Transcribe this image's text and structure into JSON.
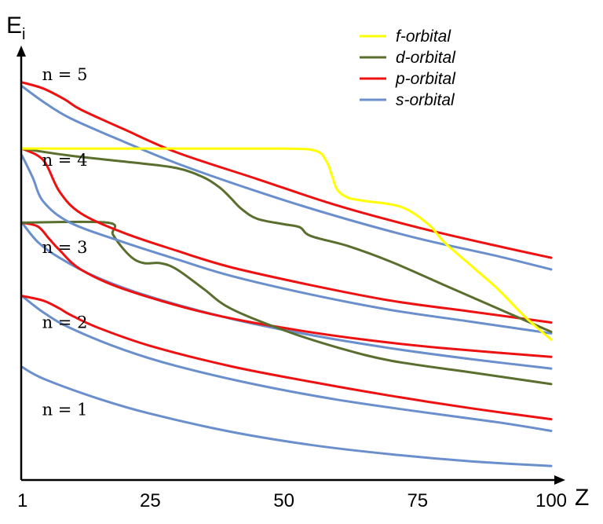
{
  "chart_data": {
    "type": "line",
    "xlabel": "Z",
    "ylabel": "E",
    "ylabel_sub": "i",
    "xlim": [
      1,
      100
    ],
    "ylim": [
      0,
      5.4
    ],
    "x_ticks": [
      {
        "value": 1,
        "label": "1"
      },
      {
        "value": 25,
        "label": "25"
      },
      {
        "value": 50,
        "label": "50"
      },
      {
        "value": 75,
        "label": "75"
      },
      {
        "value": 100,
        "label": "100"
      }
    ],
    "legend": {
      "placement": "top-right",
      "entries": [
        {
          "label": "f-orbital",
          "color": "#ffff00"
        },
        {
          "label": "d-orbital",
          "color": "#5a6e2e"
        },
        {
          "label": "p-orbital",
          "color": "#ee1111"
        },
        {
          "label": "s-orbital",
          "color": "#6a8fcc"
        }
      ]
    },
    "shell_labels": [
      {
        "text": "n = 5",
        "x": 3,
        "y": 5.2
      },
      {
        "text": "n = 4",
        "x": 3,
        "y": 4.1
      },
      {
        "text": "n = 3",
        "x": 3,
        "y": 2.98
      },
      {
        "text": "n = 2",
        "x": 3,
        "y": 2.02
      },
      {
        "text": "n = 1",
        "x": 3,
        "y": 0.9
      }
    ],
    "series": [
      {
        "orbital": "s",
        "color": "#6a8fcc",
        "points": [
          [
            1,
            1.45
          ],
          [
            5,
            1.3
          ],
          [
            15,
            1.05
          ],
          [
            25,
            0.85
          ],
          [
            40,
            0.62
          ],
          [
            55,
            0.45
          ],
          [
            70,
            0.33
          ],
          [
            85,
            0.24
          ],
          [
            100,
            0.18
          ]
        ]
      },
      {
        "orbital": "s",
        "color": "#6a8fcc",
        "points": [
          [
            1,
            2.36
          ],
          [
            5,
            2.15
          ],
          [
            10,
            1.95
          ],
          [
            20,
            1.67
          ],
          [
            30,
            1.46
          ],
          [
            45,
            1.22
          ],
          [
            60,
            1.03
          ],
          [
            75,
            0.88
          ],
          [
            90,
            0.74
          ],
          [
            100,
            0.63
          ]
        ]
      },
      {
        "orbital": "p",
        "color": "#ee1111",
        "points": [
          [
            1,
            2.36
          ],
          [
            5,
            2.3
          ],
          [
            8,
            2.2
          ],
          [
            10,
            2.12
          ],
          [
            15,
            1.96
          ],
          [
            25,
            1.72
          ],
          [
            40,
            1.46
          ],
          [
            55,
            1.26
          ],
          [
            70,
            1.08
          ],
          [
            85,
            0.92
          ],
          [
            100,
            0.78
          ]
        ]
      },
      {
        "orbital": "s",
        "color": "#6a8fcc",
        "points": [
          [
            1,
            3.3
          ],
          [
            4,
            3.05
          ],
          [
            8,
            2.85
          ],
          [
            15,
            2.6
          ],
          [
            25,
            2.35
          ],
          [
            40,
            2.07
          ],
          [
            55,
            1.86
          ],
          [
            70,
            1.69
          ],
          [
            85,
            1.55
          ],
          [
            100,
            1.43
          ]
        ]
      },
      {
        "orbital": "p",
        "color": "#ee1111",
        "points": [
          [
            1,
            3.3
          ],
          [
            4,
            3.25
          ],
          [
            6,
            3.1
          ],
          [
            8,
            2.95
          ],
          [
            12,
            2.7
          ],
          [
            20,
            2.45
          ],
          [
            35,
            2.15
          ],
          [
            50,
            1.95
          ],
          [
            65,
            1.8
          ],
          [
            80,
            1.69
          ],
          [
            100,
            1.58
          ]
        ]
      },
      {
        "orbital": "d",
        "color": "#5a6e2e",
        "points": [
          [
            1,
            3.3
          ],
          [
            17,
            3.3
          ],
          [
            18,
            3.15
          ],
          [
            20,
            2.96
          ],
          [
            22,
            2.83
          ],
          [
            24,
            2.78
          ],
          [
            27,
            2.78
          ],
          [
            30,
            2.7
          ],
          [
            35,
            2.45
          ],
          [
            40,
            2.2
          ],
          [
            50,
            1.92
          ],
          [
            60,
            1.7
          ],
          [
            70,
            1.53
          ],
          [
            85,
            1.38
          ],
          [
            100,
            1.23
          ]
        ]
      },
      {
        "orbital": "s",
        "color": "#6a8fcc",
        "points": [
          [
            1,
            4.16
          ],
          [
            3,
            3.88
          ],
          [
            5,
            3.57
          ],
          [
            10,
            3.3
          ],
          [
            20,
            3.05
          ],
          [
            30,
            2.83
          ],
          [
            40,
            2.62
          ],
          [
            55,
            2.38
          ],
          [
            70,
            2.18
          ],
          [
            85,
            2.03
          ],
          [
            100,
            1.88
          ]
        ]
      },
      {
        "orbital": "p",
        "color": "#ee1111",
        "points": [
          [
            1,
            4.25
          ],
          [
            5,
            4.1
          ],
          [
            8,
            3.7
          ],
          [
            12,
            3.42
          ],
          [
            20,
            3.17
          ],
          [
            30,
            2.94
          ],
          [
            40,
            2.73
          ],
          [
            55,
            2.5
          ],
          [
            70,
            2.3
          ],
          [
            85,
            2.16
          ],
          [
            100,
            2.02
          ]
        ]
      },
      {
        "orbital": "d",
        "color": "#5a6e2e",
        "points": [
          [
            1,
            4.25
          ],
          [
            10,
            4.16
          ],
          [
            22,
            4.07
          ],
          [
            30,
            4.0
          ],
          [
            35,
            3.88
          ],
          [
            38,
            3.75
          ],
          [
            40,
            3.62
          ],
          [
            42,
            3.48
          ],
          [
            45,
            3.35
          ],
          [
            50,
            3.28
          ],
          [
            53,
            3.24
          ],
          [
            55,
            3.13
          ],
          [
            62,
            3.0
          ],
          [
            70,
            2.8
          ],
          [
            80,
            2.5
          ],
          [
            90,
            2.2
          ],
          [
            100,
            1.9
          ]
        ]
      },
      {
        "orbital": "s",
        "color": "#6a8fcc",
        "points": [
          [
            1,
            5.05
          ],
          [
            5,
            4.85
          ],
          [
            10,
            4.64
          ],
          [
            20,
            4.34
          ],
          [
            30,
            4.06
          ],
          [
            45,
            3.7
          ],
          [
            60,
            3.38
          ],
          [
            75,
            3.1
          ],
          [
            90,
            2.87
          ],
          [
            100,
            2.7
          ]
        ]
      },
      {
        "orbital": "p",
        "color": "#ee1111",
        "points": [
          [
            1,
            5.1
          ],
          [
            5,
            5.02
          ],
          [
            9,
            4.88
          ],
          [
            12,
            4.75
          ],
          [
            20,
            4.5
          ],
          [
            30,
            4.2
          ],
          [
            45,
            3.86
          ],
          [
            60,
            3.52
          ],
          [
            75,
            3.24
          ],
          [
            90,
            3.0
          ],
          [
            100,
            2.85
          ]
        ]
      },
      {
        "orbital": "f",
        "color": "#ffff00",
        "points": [
          [
            1,
            4.25
          ],
          [
            30,
            4.25
          ],
          [
            50,
            4.25
          ],
          [
            56,
            4.22
          ],
          [
            58,
            4.08
          ],
          [
            59,
            3.9
          ],
          [
            60,
            3.72
          ],
          [
            62,
            3.62
          ],
          [
            65,
            3.58
          ],
          [
            72,
            3.5
          ],
          [
            77,
            3.28
          ],
          [
            80,
            3.05
          ],
          [
            85,
            2.75
          ],
          [
            90,
            2.45
          ],
          [
            95,
            2.1
          ],
          [
            100,
            1.8
          ]
        ]
      }
    ]
  }
}
